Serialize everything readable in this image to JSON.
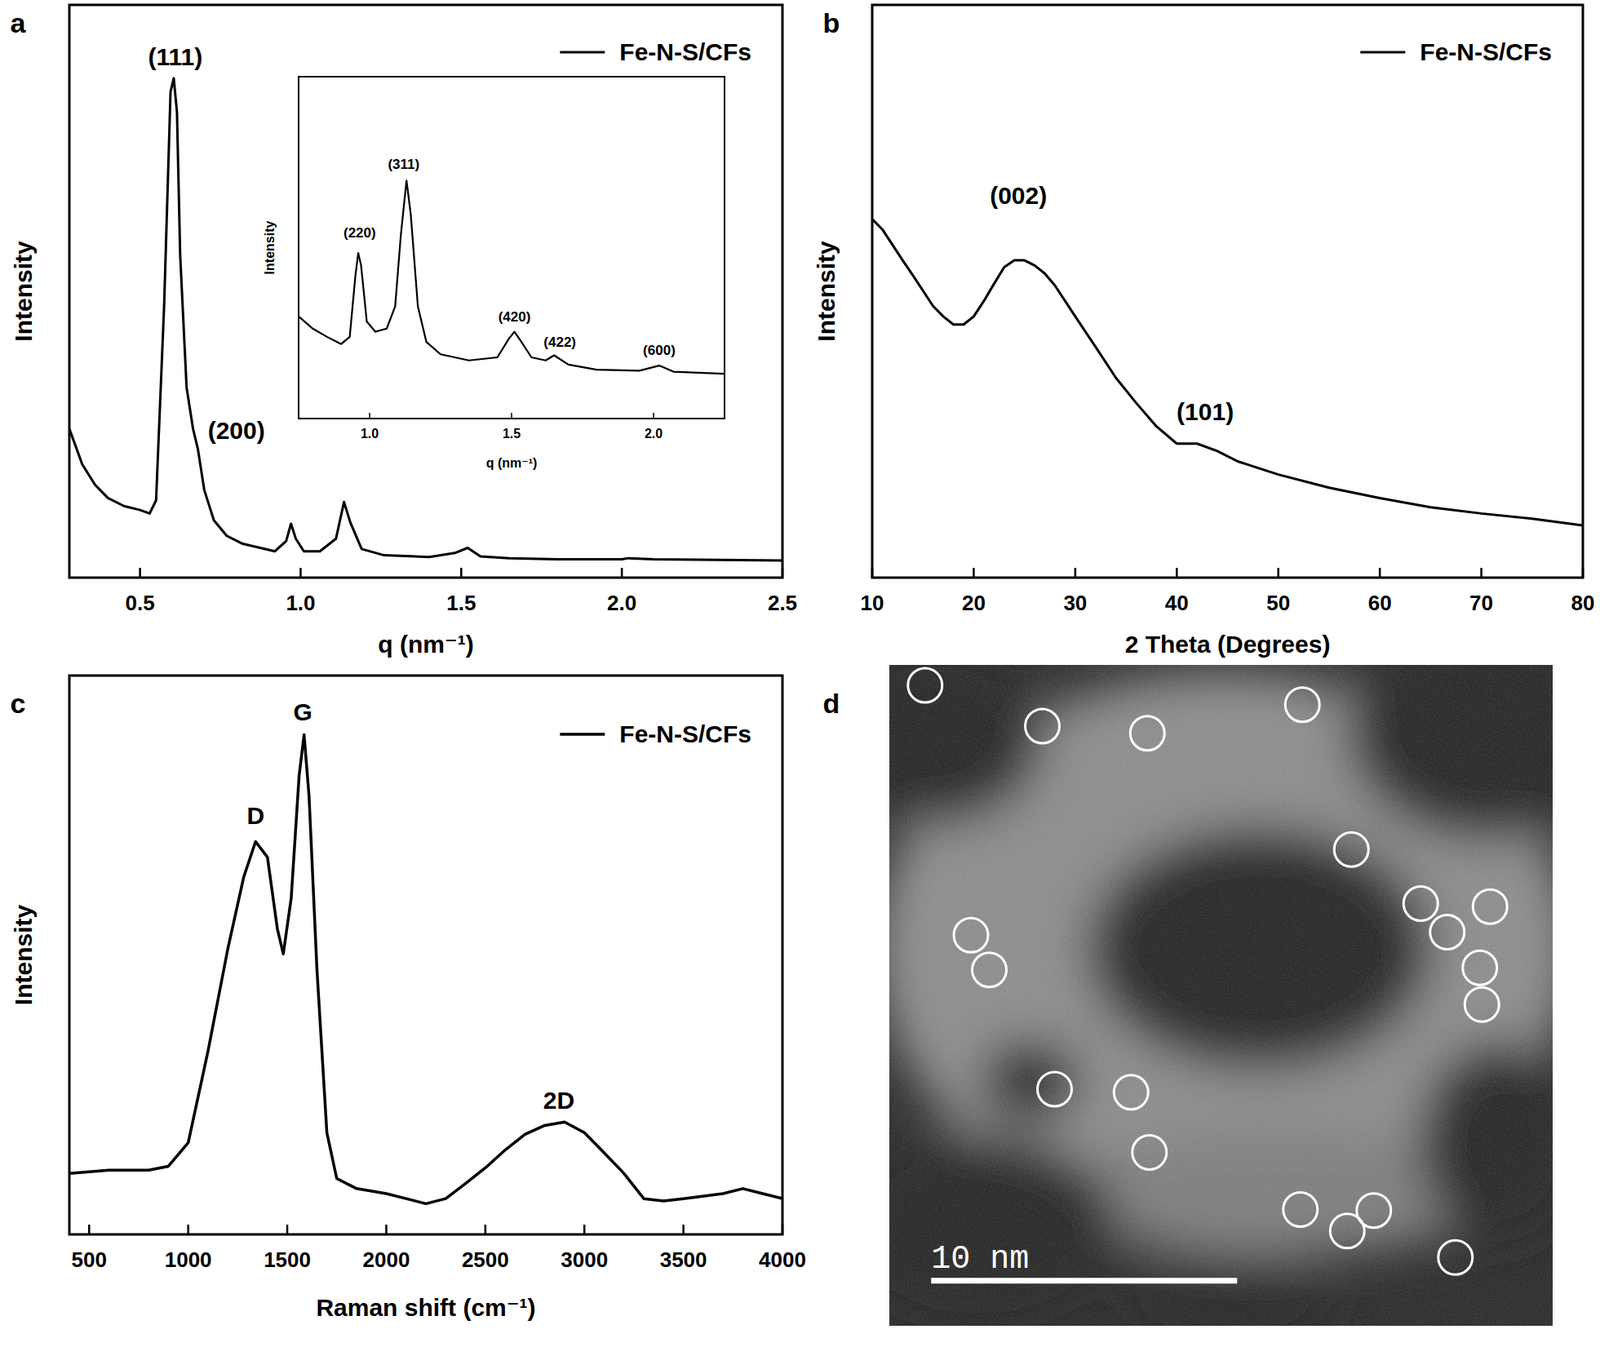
{
  "chart_data": [
    {
      "type": "line",
      "title": "a",
      "x_label": "q (nm⁻¹)",
      "y_label": "Intensity",
      "xlim": [
        0.28,
        2.5
      ],
      "ylim": [
        0,
        100
      ],
      "xticks": [
        0.5,
        {
          "value": 1,
          "label": "1.0"
        },
        1.5,
        {
          "value": 2,
          "label": "2.0"
        },
        2.5
      ],
      "tick_labels": "x",
      "legend": "upper right",
      "x": [
        0.28,
        0.32,
        0.36,
        0.4,
        0.45,
        0.5,
        0.53,
        0.55,
        0.575,
        0.595,
        0.605,
        0.615,
        0.625,
        0.645,
        0.665,
        0.68,
        0.7,
        0.73,
        0.77,
        0.82,
        0.92,
        0.955,
        0.97,
        0.985,
        1.01,
        1.06,
        1.11,
        1.135,
        1.155,
        1.19,
        1.26,
        1.4,
        1.48,
        1.52,
        1.56,
        1.65,
        1.8,
        2.0,
        2.02,
        2.1,
        2.5
      ],
      "series": [
        {
          "name": "Fe-N-S/CFs",
          "color": "#000000",
          "values": [
            26.0,
            19.8,
            16.2,
            13.9,
            12.5,
            11.8,
            11.2,
            13.5,
            47.4,
            84.8,
            87.2,
            81.3,
            56.3,
            33.2,
            26.0,
            22.5,
            15.3,
            10.0,
            7.3,
            5.9,
            4.6,
            6.4,
            9.4,
            6.8,
            4.6,
            4.6,
            6.8,
            13.2,
            9.6,
            5.0,
            3.9,
            3.6,
            4.3,
            5.2,
            3.7,
            3.4,
            3.2,
            3.2,
            3.4,
            3.2,
            3.0
          ]
        }
      ],
      "annotations": [
        {
          "text": "(111)",
          "x": 0.61,
          "y": 89.5
        },
        {
          "text": "(200)",
          "x": 0.8,
          "y": 24.2
        }
      ]
    },
    {
      "type": "line",
      "x_label": "q (nm⁻¹)",
      "y_label": "Intensity",
      "xlim": [
        0.75,
        2.25
      ],
      "ylim": [
        0,
        100
      ],
      "xticks": [
        {
          "value": 1,
          "label": "1.0"
        },
        1.5,
        {
          "value": 2,
          "label": "2.0"
        }
      ],
      "tick_labels": "x",
      "x": [
        0.75,
        0.8,
        0.85,
        0.9,
        0.93,
        0.95,
        0.96,
        0.97,
        0.99,
        1.02,
        1.06,
        1.09,
        1.11,
        1.13,
        1.145,
        1.17,
        1.2,
        1.25,
        1.35,
        1.45,
        1.49,
        1.51,
        1.53,
        1.57,
        1.62,
        1.65,
        1.7,
        1.8,
        1.95,
        2.02,
        2.07,
        2.25
      ],
      "series": [
        {
          "color": "#000000",
          "values": [
            29.9,
            26.3,
            23.9,
            21.8,
            23.9,
            41.8,
            48.4,
            44.8,
            28.4,
            25.4,
            26.3,
            32.8,
            53.7,
            69.6,
            59.7,
            32.8,
            22.4,
            18.8,
            17.0,
            17.9,
            23.3,
            25.4,
            23.0,
            17.9,
            17.0,
            18.5,
            15.8,
            14.3,
            14.0,
            15.5,
            13.7,
            13.1
          ]
        }
      ],
      "annotations": [
        {
          "text": "(220)",
          "x": 0.965,
          "y": 53
        },
        {
          "text": "(311)",
          "x": 1.12,
          "y": 73
        },
        {
          "text": "(420)",
          "x": 1.51,
          "y": 28.5
        },
        {
          "text": "(422)",
          "x": 1.67,
          "y": 21
        },
        {
          "text": "(600)",
          "x": 2.02,
          "y": 18.5
        }
      ]
    },
    {
      "type": "line",
      "title": "b",
      "x_label": "2 Theta (Degrees)",
      "y_label": "Intensity",
      "xlim": [
        10,
        80
      ],
      "ylim": [
        0,
        100
      ],
      "xticks": [
        10,
        20,
        30,
        40,
        50,
        60,
        70,
        80
      ],
      "tick_labels": "x",
      "legend": "upper right",
      "x": [
        10,
        11,
        12,
        13,
        14,
        15,
        16,
        17,
        18,
        19,
        20,
        21,
        22,
        23,
        24,
        25,
        26,
        27,
        28,
        29,
        30,
        32,
        34,
        36,
        38,
        40,
        42,
        44,
        46,
        50,
        55,
        60,
        65,
        70,
        75,
        80
      ],
      "series": [
        {
          "name": "Fe-N-S/CFs",
          "color": "#000000",
          "values": [
            62.6,
            60.8,
            58.1,
            55.4,
            52.8,
            50.1,
            47.4,
            45.6,
            44.2,
            44.2,
            45.6,
            48.3,
            51.3,
            54.2,
            55.4,
            55.4,
            54.5,
            53.1,
            51.0,
            48.3,
            45.6,
            40.3,
            34.9,
            30.5,
            26.4,
            23.4,
            23.4,
            22.1,
            20.3,
            18.0,
            15.7,
            13.9,
            12.3,
            11.2,
            10.3,
            9.1
          ]
        }
      ],
      "annotations": [
        {
          "text": "(002)",
          "x": 24.4,
          "y": 65.2
        },
        {
          "text": "(101)",
          "x": 42.8,
          "y": 27.5
        }
      ]
    },
    {
      "type": "line",
      "title": "c",
      "x_label": "Raman shift (cm⁻¹)",
      "y_label": "Intensity",
      "xlim": [
        400,
        4000
      ],
      "ylim": [
        0,
        100
      ],
      "xticks": [
        500,
        1000,
        1500,
        2000,
        2500,
        3000,
        3500,
        4000
      ],
      "tick_labels": "x",
      "legend": "upper right",
      "x": [
        400,
        600,
        800,
        900,
        1000,
        1100,
        1200,
        1280,
        1340,
        1400,
        1450,
        1480,
        1520,
        1560,
        1585,
        1610,
        1650,
        1700,
        1750,
        1850,
        2000,
        2100,
        2200,
        2300,
        2400,
        2500,
        2600,
        2700,
        2800,
        2900,
        3000,
        3100,
        3200,
        3300,
        3400,
        3500,
        3700,
        3800,
        3900,
        4000
      ],
      "series": [
        {
          "name": "Fe-N-S/CFs",
          "color": "#000000",
          "values": [
            10.9,
            11.5,
            11.5,
            12.2,
            16.4,
            32.8,
            51.1,
            63.9,
            70.3,
            67.5,
            54.7,
            50.2,
            60.2,
            82.1,
            89.4,
            78.5,
            47.4,
            18.2,
            10.0,
            8.2,
            7.3,
            6.4,
            5.5,
            6.4,
            9.1,
            11.9,
            15.1,
            17.9,
            19.5,
            20.1,
            18.2,
            14.6,
            10.9,
            6.4,
            6.0,
            6.4,
            7.3,
            8.2,
            7.3,
            6.4
          ]
        }
      ],
      "annotations": [
        {
          "text": "D",
          "x": 1340,
          "y": 73.5
        },
        {
          "text": "G",
          "x": 1579,
          "y": 92
        },
        {
          "text": "2D",
          "x": 2871,
          "y": 22.5
        }
      ]
    }
  ],
  "image": {
    "title": "d",
    "scale_bar": "10 nm"
  }
}
